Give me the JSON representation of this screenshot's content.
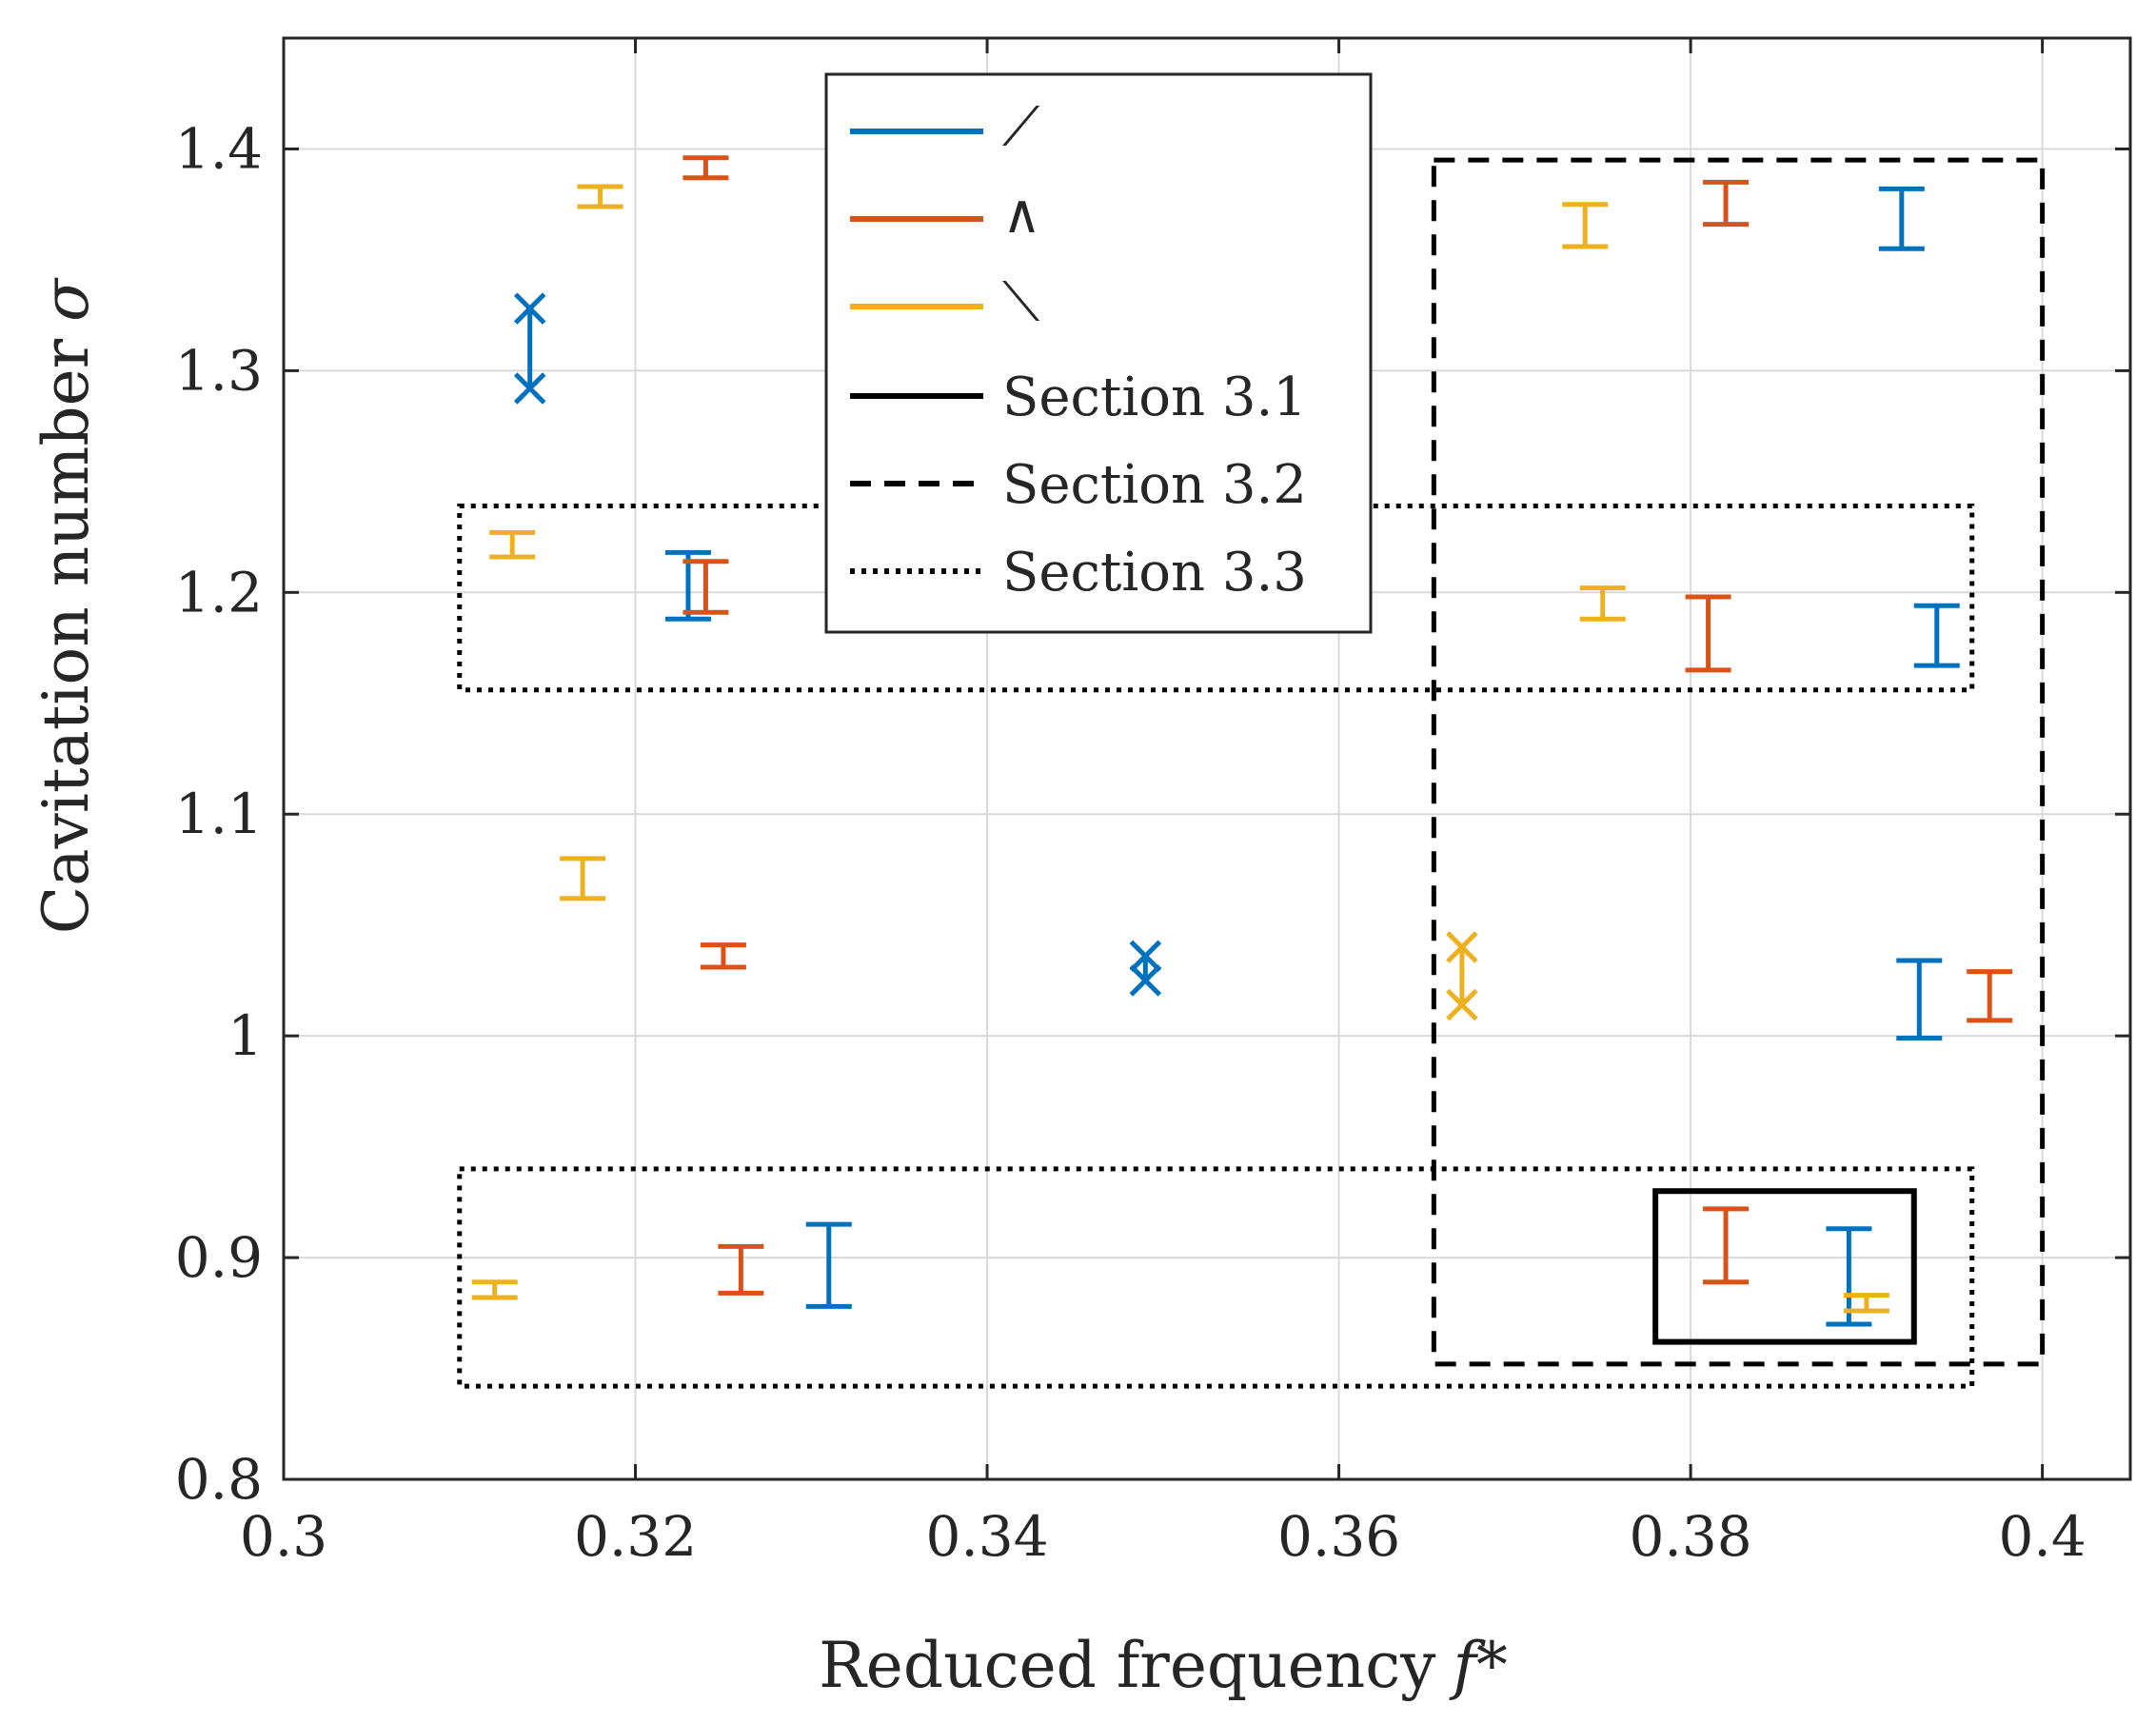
{
  "chart_data": {
    "type": "scatter",
    "xlabel": "Reduced frequency",
    "xlabel_symbol": "f*",
    "ylabel": "Cavitation number",
    "ylabel_symbol": "σ",
    "xlim": [
      0.3,
      0.405
    ],
    "ylim": [
      0.8,
      1.45
    ],
    "x_ticks": [
      0.3,
      0.32,
      0.34,
      0.36,
      0.38,
      0.4
    ],
    "x_tick_labels": [
      "0.3",
      "0.32",
      "0.34",
      "0.36",
      "0.38",
      "0.4"
    ],
    "y_ticks": [
      0.8,
      0.9,
      1.0,
      1.1,
      1.2,
      1.3,
      1.4
    ],
    "y_tick_labels": [
      "0.8",
      "0.9",
      "1",
      "1.1",
      "1.2",
      "1.3",
      "1.4"
    ],
    "grid": true,
    "legend_position": "top-center",
    "series": [
      {
        "name": "⟋",
        "color": "#0072BD",
        "points": [
          {
            "x": 0.314,
            "lo": 1.292,
            "hi": 1.328,
            "marker": "x"
          },
          {
            "x": 0.323,
            "lo": 1.188,
            "hi": 1.218,
            "marker": "bar"
          },
          {
            "x": 0.349,
            "lo": 1.025,
            "hi": 1.036,
            "marker": "x"
          },
          {
            "x": 0.331,
            "lo": 0.878,
            "hi": 0.915,
            "marker": "bar"
          },
          {
            "x": 0.392,
            "lo": 1.355,
            "hi": 1.382,
            "marker": "bar"
          },
          {
            "x": 0.394,
            "lo": 1.167,
            "hi": 1.194,
            "marker": "bar"
          },
          {
            "x": 0.393,
            "lo": 0.999,
            "hi": 1.034,
            "marker": "bar"
          },
          {
            "x": 0.389,
            "lo": 0.87,
            "hi": 0.913,
            "marker": "bar"
          }
        ]
      },
      {
        "name": "∧",
        "color": "#D95319",
        "points": [
          {
            "x": 0.324,
            "lo": 1.387,
            "hi": 1.396,
            "marker": "bar"
          },
          {
            "x": 0.324,
            "lo": 1.191,
            "hi": 1.214,
            "marker": "bar"
          },
          {
            "x": 0.325,
            "lo": 1.031,
            "hi": 1.041,
            "marker": "bar"
          },
          {
            "x": 0.326,
            "lo": 0.884,
            "hi": 0.905,
            "marker": "bar"
          },
          {
            "x": 0.382,
            "lo": 1.366,
            "hi": 1.385,
            "marker": "bar"
          },
          {
            "x": 0.381,
            "lo": 1.165,
            "hi": 1.198,
            "marker": "bar"
          },
          {
            "x": 0.397,
            "lo": 1.007,
            "hi": 1.029,
            "marker": "bar"
          },
          {
            "x": 0.382,
            "lo": 0.889,
            "hi": 0.922,
            "marker": "bar"
          }
        ]
      },
      {
        "name": "⟍",
        "color": "#EDB120",
        "points": [
          {
            "x": 0.318,
            "lo": 1.374,
            "hi": 1.383,
            "marker": "bar"
          },
          {
            "x": 0.313,
            "lo": 1.216,
            "hi": 1.227,
            "marker": "bar"
          },
          {
            "x": 0.317,
            "lo": 1.062,
            "hi": 1.08,
            "marker": "bar"
          },
          {
            "x": 0.312,
            "lo": 0.882,
            "hi": 0.889,
            "marker": "bar"
          },
          {
            "x": 0.374,
            "lo": 1.356,
            "hi": 1.375,
            "marker": "bar"
          },
          {
            "x": 0.375,
            "lo": 1.188,
            "hi": 1.202,
            "marker": "bar"
          },
          {
            "x": 0.367,
            "lo": 1.014,
            "hi": 1.04,
            "marker": "x"
          },
          {
            "x": 0.39,
            "lo": 0.876,
            "hi": 0.883,
            "marker": "bar"
          }
        ]
      }
    ],
    "regions": [
      {
        "name": "Section 3.1",
        "style": "solid",
        "x0": 0.378,
        "x1": 0.3927,
        "y0": 0.862,
        "y1": 0.93
      },
      {
        "name": "Section 3.2",
        "style": "dashed",
        "x0": 0.3654,
        "x1": 0.4,
        "y0": 0.852,
        "y1": 1.395
      },
      {
        "name": "Section 3.3",
        "style": "dotted",
        "x0": 0.31,
        "x1": 0.396,
        "y0": 1.156,
        "y1": 1.239
      },
      {
        "name": "Section 3.3",
        "style": "dotted",
        "x0": 0.31,
        "x1": 0.396,
        "y0": 0.842,
        "y1": 0.94
      }
    ],
    "legend": [
      {
        "label": "⟋",
        "color": "#0072BD",
        "style": "solid"
      },
      {
        "label": "∧",
        "color": "#D95319",
        "style": "solid"
      },
      {
        "label": "⟍",
        "color": "#EDB120",
        "style": "solid"
      },
      {
        "label": "Section 3.1",
        "color": "#000000",
        "style": "solid"
      },
      {
        "label": "Section 3.2",
        "color": "#000000",
        "style": "dashed"
      },
      {
        "label": "Section 3.3",
        "color": "#000000",
        "style": "dotted"
      }
    ]
  }
}
